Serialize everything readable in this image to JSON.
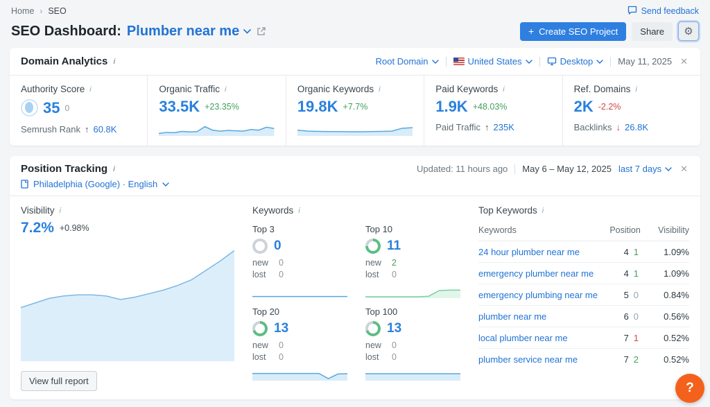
{
  "icons": {
    "info": "i",
    "close": "✕",
    "gear": "⚙",
    "breadcrumb_sep": "›",
    "plus": "+"
  },
  "topbar": {
    "breadcrumb": {
      "home": "Home",
      "seo": "SEO"
    },
    "send_feedback": "Send feedback",
    "title_prefix": "SEO Dashboard:",
    "project_name": "Plumber near me",
    "create_button": "Create SEO Project",
    "share_button": "Share"
  },
  "domain_analytics": {
    "title": "Domain Analytics",
    "filters": {
      "scope": "Root Domain",
      "country": "United States",
      "device": "Desktop",
      "date": "May 11, 2025"
    },
    "metrics": [
      {
        "label": "Authority Score",
        "value": "35",
        "change": "0",
        "sub_label": "Semrush Rank",
        "sub_arrow": "↑",
        "sub_arrow_color": "#505a60",
        "sub_value": "60.8K"
      },
      {
        "label": "Organic Traffic",
        "value": "33.5K",
        "delta": "+23.35%",
        "delta_color": "#42a05c"
      },
      {
        "label": "Organic Keywords",
        "value": "19.8K",
        "delta": "+7.7%",
        "delta_color": "#42a05c"
      },
      {
        "label": "Paid Keywords",
        "value": "1.9K",
        "delta": "+48.03%",
        "delta_color": "#42a05c",
        "sub_label": "Paid Traffic",
        "sub_arrow": "↑",
        "sub_arrow_color": "#505a60",
        "sub_value": "235K"
      },
      {
        "label": "Ref. Domains",
        "value": "2K",
        "delta": "-2.2%",
        "delta_color": "#cf4944",
        "sub_label": "Backlinks",
        "sub_arrow": "↓",
        "sub_arrow_color": "#cf4944",
        "sub_value": "26.8K"
      }
    ]
  },
  "position_tracking": {
    "title": "Position Tracking",
    "updated": "Updated: 11 hours ago",
    "date_range": "May 6 – May 12, 2025",
    "range_selector": "last 7 days",
    "campaign": "Philadelphia (Google) · English",
    "visibility": {
      "label": "Visibility",
      "value": "7.2%",
      "delta": "+0.98%"
    },
    "keywords_label": "Keywords",
    "new_label": "new",
    "lost_label": "lost",
    "keyword_buckets": [
      {
        "label": "Top 3",
        "count": "0",
        "new": "0",
        "new_color": "#8d979e",
        "lost": "0",
        "ring": {
          "pct": 0,
          "color": "#5cbd86",
          "track": "#ccd3d9"
        }
      },
      {
        "label": "Top 10",
        "count": "11",
        "new": "2",
        "new_color": "#42a05c",
        "lost": "0",
        "ring": {
          "pct": 75,
          "color": "#5cbd86",
          "track": "#ccd3d9"
        }
      },
      {
        "label": "Top 20",
        "count": "13",
        "new": "0",
        "new_color": "#8d979e",
        "lost": "0",
        "ring": {
          "pct": 70,
          "color": "#5cbd86",
          "track": "#ccd3d9"
        }
      },
      {
        "label": "Top 100",
        "count": "13",
        "new": "0",
        "new_color": "#8d979e",
        "lost": "0",
        "ring": {
          "pct": 70,
          "color": "#5cbd86",
          "track": "#ccd3d9"
        }
      }
    ],
    "top_keywords": {
      "title": "Top Keywords",
      "columns": {
        "keywords": "Keywords",
        "position": "Position",
        "visibility": "Visibility"
      },
      "rows": [
        {
          "keyword": "24 hour plumber near me",
          "position": "4",
          "change": "1",
          "change_color": "#42a05c",
          "visibility": "1.09%"
        },
        {
          "keyword": "emergency plumber near me",
          "position": "4",
          "change": "1",
          "change_color": "#42a05c",
          "visibility": "1.09%"
        },
        {
          "keyword": "emergency plumbing near me",
          "position": "5",
          "change": "0",
          "change_color": "#98a2a9",
          "visibility": "0.84%"
        },
        {
          "keyword": "plumber near me",
          "position": "6",
          "change": "0",
          "change_color": "#98a2a9",
          "visibility": "0.56%"
        },
        {
          "keyword": "local plumber near me",
          "position": "7",
          "change": "1",
          "change_color": "#cf4944",
          "visibility": "0.52%"
        },
        {
          "keyword": "plumber service near me",
          "position": "7",
          "change": "2",
          "change_color": "#42a05c",
          "visibility": "0.52%"
        }
      ]
    },
    "view_full_report": "View full report"
  },
  "help_button": "?",
  "chart_data": {
    "visibility_trend": {
      "type": "area",
      "points": [
        46,
        50,
        54,
        56,
        57,
        57,
        56,
        53,
        55,
        58,
        61,
        65,
        70,
        78,
        86,
        95
      ],
      "stroke": "#7cb8e4",
      "fill": "#ddeefb",
      "stroke_width": 1.5
    },
    "organic_traffic": {
      "type": "area",
      "points": [
        15,
        22,
        20,
        28,
        25,
        27,
        58,
        36,
        30,
        34,
        32,
        30,
        40,
        36,
        55,
        46
      ],
      "stroke": "#5aa7dc",
      "fill": "#d9ecfa",
      "stroke_width": 1.5
    },
    "organic_keywords": {
      "type": "area",
      "points": [
        36,
        30,
        28,
        27,
        27,
        26,
        26,
        27,
        28,
        30,
        48,
        52
      ],
      "stroke": "#5aa7dc",
      "fill": "#d9ecfa",
      "stroke_width": 1.5
    },
    "top3": {
      "type": "line",
      "points": [
        12,
        12,
        12,
        12,
        12,
        12,
        12,
        12
      ],
      "stroke": "#53a7dd",
      "fill": null,
      "stroke_width": 1.5
    },
    "top10": {
      "type": "area",
      "points": [
        10,
        10,
        10,
        10,
        10,
        10,
        14,
        55,
        58,
        58
      ],
      "stroke": "#77d1a1",
      "fill": "#e2f5eb",
      "stroke_width": 1.5
    },
    "top20": {
      "type": "area",
      "points": [
        52,
        52,
        52,
        52,
        52,
        52,
        52,
        52,
        15,
        48,
        50
      ],
      "stroke": "#5aa7dc",
      "fill": "#d9ecfa",
      "stroke_width": 1.5
    },
    "top100": {
      "type": "area",
      "points": [
        50,
        50,
        50,
        50,
        50,
        50,
        50,
        50
      ],
      "stroke": "#5aa7dc",
      "fill": "#d9ecfa",
      "stroke_width": 1.5
    }
  }
}
